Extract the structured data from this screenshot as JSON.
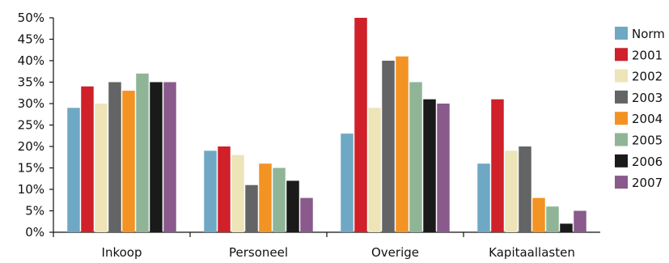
{
  "chart_data": {
    "type": "bar",
    "categories": [
      "Inkoop",
      "Personeel",
      "Overige",
      "Kapitaallasten"
    ],
    "series": [
      {
        "name": "Norm",
        "color": "#6fa8c4",
        "values": [
          29,
          19,
          23,
          16
        ]
      },
      {
        "name": "2001",
        "color": "#d0202a",
        "values": [
          34,
          20,
          50,
          31
        ]
      },
      {
        "name": "2002",
        "color": "#ede4b8",
        "values": [
          30,
          18,
          29,
          19
        ]
      },
      {
        "name": "2003",
        "color": "#636466",
        "values": [
          35,
          11,
          40,
          20
        ]
      },
      {
        "name": "2004",
        "color": "#f39323",
        "values": [
          33,
          16,
          41,
          8
        ]
      },
      {
        "name": "2005",
        "color": "#8fb596",
        "values": [
          37,
          15,
          35,
          6
        ]
      },
      {
        "name": "2006",
        "color": "#1a1a1a",
        "values": [
          35,
          12,
          31,
          2
        ]
      },
      {
        "name": "2007",
        "color": "#8a5a8c",
        "values": [
          35,
          8,
          30,
          5
        ]
      }
    ],
    "yticks": [
      "0%",
      "5%",
      "10%",
      "15%",
      "20%",
      "25%",
      "30%",
      "35%",
      "40%",
      "45%",
      "50%"
    ],
    "ylim": [
      0,
      50
    ],
    "ytick_step": 5,
    "legend_position": "right",
    "grid": false
  }
}
